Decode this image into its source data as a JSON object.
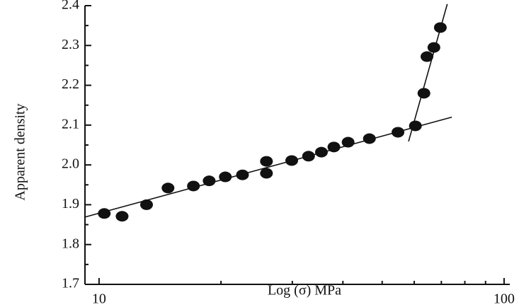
{
  "chart_data": {
    "type": "scatter",
    "x_label": "Log (σ) MPa",
    "y_label": "Apparent density",
    "log_x": true,
    "color": "#111111",
    "xlim": [
      9.23,
      103.3
    ],
    "ylim": [
      1.7,
      2.4
    ],
    "xticks": [
      10,
      100
    ],
    "x_minor_ticks": [
      20,
      30,
      40,
      50,
      60,
      70,
      80,
      90
    ],
    "yticks": [
      {
        "value": 1.7,
        "label": "1.7"
      },
      {
        "value": 1.8,
        "label": "1.8"
      },
      {
        "value": 1.9,
        "label": "1.9"
      },
      {
        "value": 2.0,
        "label": "2.0"
      },
      {
        "value": 2.1,
        "label": "2.1"
      },
      {
        "value": 2.2,
        "label": "2.2"
      },
      {
        "value": 2.3,
        "label": "2.3"
      },
      {
        "value": 2.4,
        "label": "2.4"
      }
    ],
    "y_minor_ticks": [
      1.75,
      1.85,
      1.95,
      2.05,
      2.15,
      2.25,
      2.35
    ],
    "points": {
      "x": [
        10.3,
        11.4,
        13.1,
        14.8,
        17.1,
        18.7,
        20.5,
        22.6,
        25.9,
        25.9,
        29.9,
        32.9,
        35.4,
        38.0,
        41.2,
        46.5,
        54.7,
        60.4,
        63.4,
        64.5,
        67.1,
        69.6
      ],
      "y": [
        1.878,
        1.871,
        1.9,
        1.942,
        1.947,
        1.96,
        1.97,
        1.975,
        2.009,
        1.979,
        2.011,
        2.022,
        2.032,
        2.045,
        2.057,
        2.066,
        2.082,
        2.098,
        2.18,
        2.272,
        2.295,
        2.345
      ]
    },
    "fit_lines": [
      {
        "x": [
          9.23,
          74.3
        ],
        "y": [
          1.869,
          2.12
        ]
      },
      {
        "x": [
          58.1,
          72.4
        ],
        "y": [
          2.059,
          2.404
        ]
      }
    ]
  }
}
